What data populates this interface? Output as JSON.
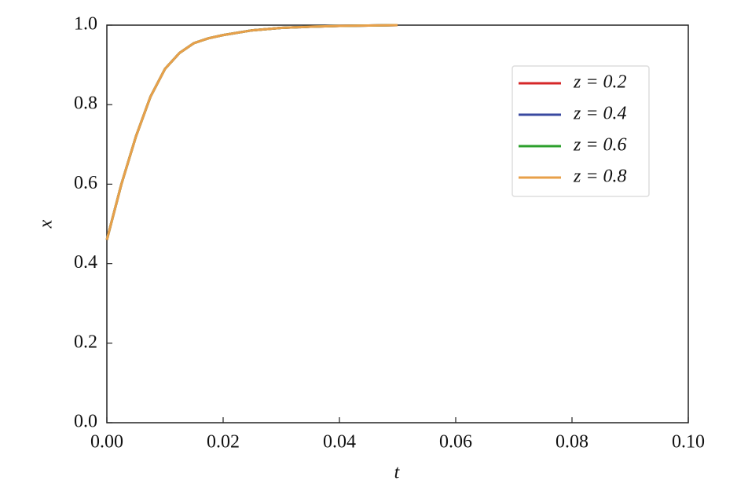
{
  "chart_data": {
    "type": "line",
    "xlabel": "t",
    "ylabel": "x",
    "x": [
      0,
      0.0025,
      0.005,
      0.0075,
      0.01,
      0.0125,
      0.015,
      0.0175,
      0.02,
      0.025,
      0.03,
      0.035,
      0.04,
      0.045,
      0.05
    ],
    "series": [
      {
        "name": "z = 0.2",
        "color": "#d62728",
        "values": [
          0.46,
          0.6,
          0.72,
          0.82,
          0.89,
          0.93,
          0.955,
          0.967,
          0.975,
          0.987,
          0.993,
          0.996,
          0.998,
          0.999,
          1.0
        ]
      },
      {
        "name": "z = 0.4",
        "color": "#3949a0",
        "values": [
          0.46,
          0.6,
          0.72,
          0.82,
          0.89,
          0.93,
          0.955,
          0.967,
          0.975,
          0.987,
          0.993,
          0.996,
          0.998,
          0.999,
          1.0
        ]
      },
      {
        "name": "z = 0.6",
        "color": "#2ca02c",
        "values": [
          0.46,
          0.6,
          0.72,
          0.82,
          0.89,
          0.93,
          0.955,
          0.967,
          0.975,
          0.987,
          0.993,
          0.996,
          0.998,
          0.999,
          1.0
        ]
      },
      {
        "name": "z = 0.8",
        "color": "#e8a04a",
        "values": [
          0.46,
          0.6,
          0.72,
          0.82,
          0.89,
          0.93,
          0.955,
          0.967,
          0.975,
          0.987,
          0.993,
          0.996,
          0.998,
          0.999,
          1.0
        ]
      }
    ],
    "xlim": [
      0,
      0.1
    ],
    "xticks": [
      {
        "value": 0,
        "label": "0.00"
      },
      {
        "value": 0.02,
        "label": "0.02"
      },
      {
        "value": 0.04,
        "label": "0.04"
      },
      {
        "value": 0.06,
        "label": "0.06"
      },
      {
        "value": 0.08,
        "label": "0.08"
      },
      {
        "value": 0.1,
        "label": "0.10"
      }
    ],
    "ylim": [
      0,
      1
    ],
    "yticks": [
      {
        "value": 0,
        "label": "0.0"
      },
      0.2,
      0.4,
      0.6,
      0.8,
      {
        "value": 1,
        "label": "1.0"
      }
    ],
    "grid": false,
    "legend": "upper right"
  }
}
